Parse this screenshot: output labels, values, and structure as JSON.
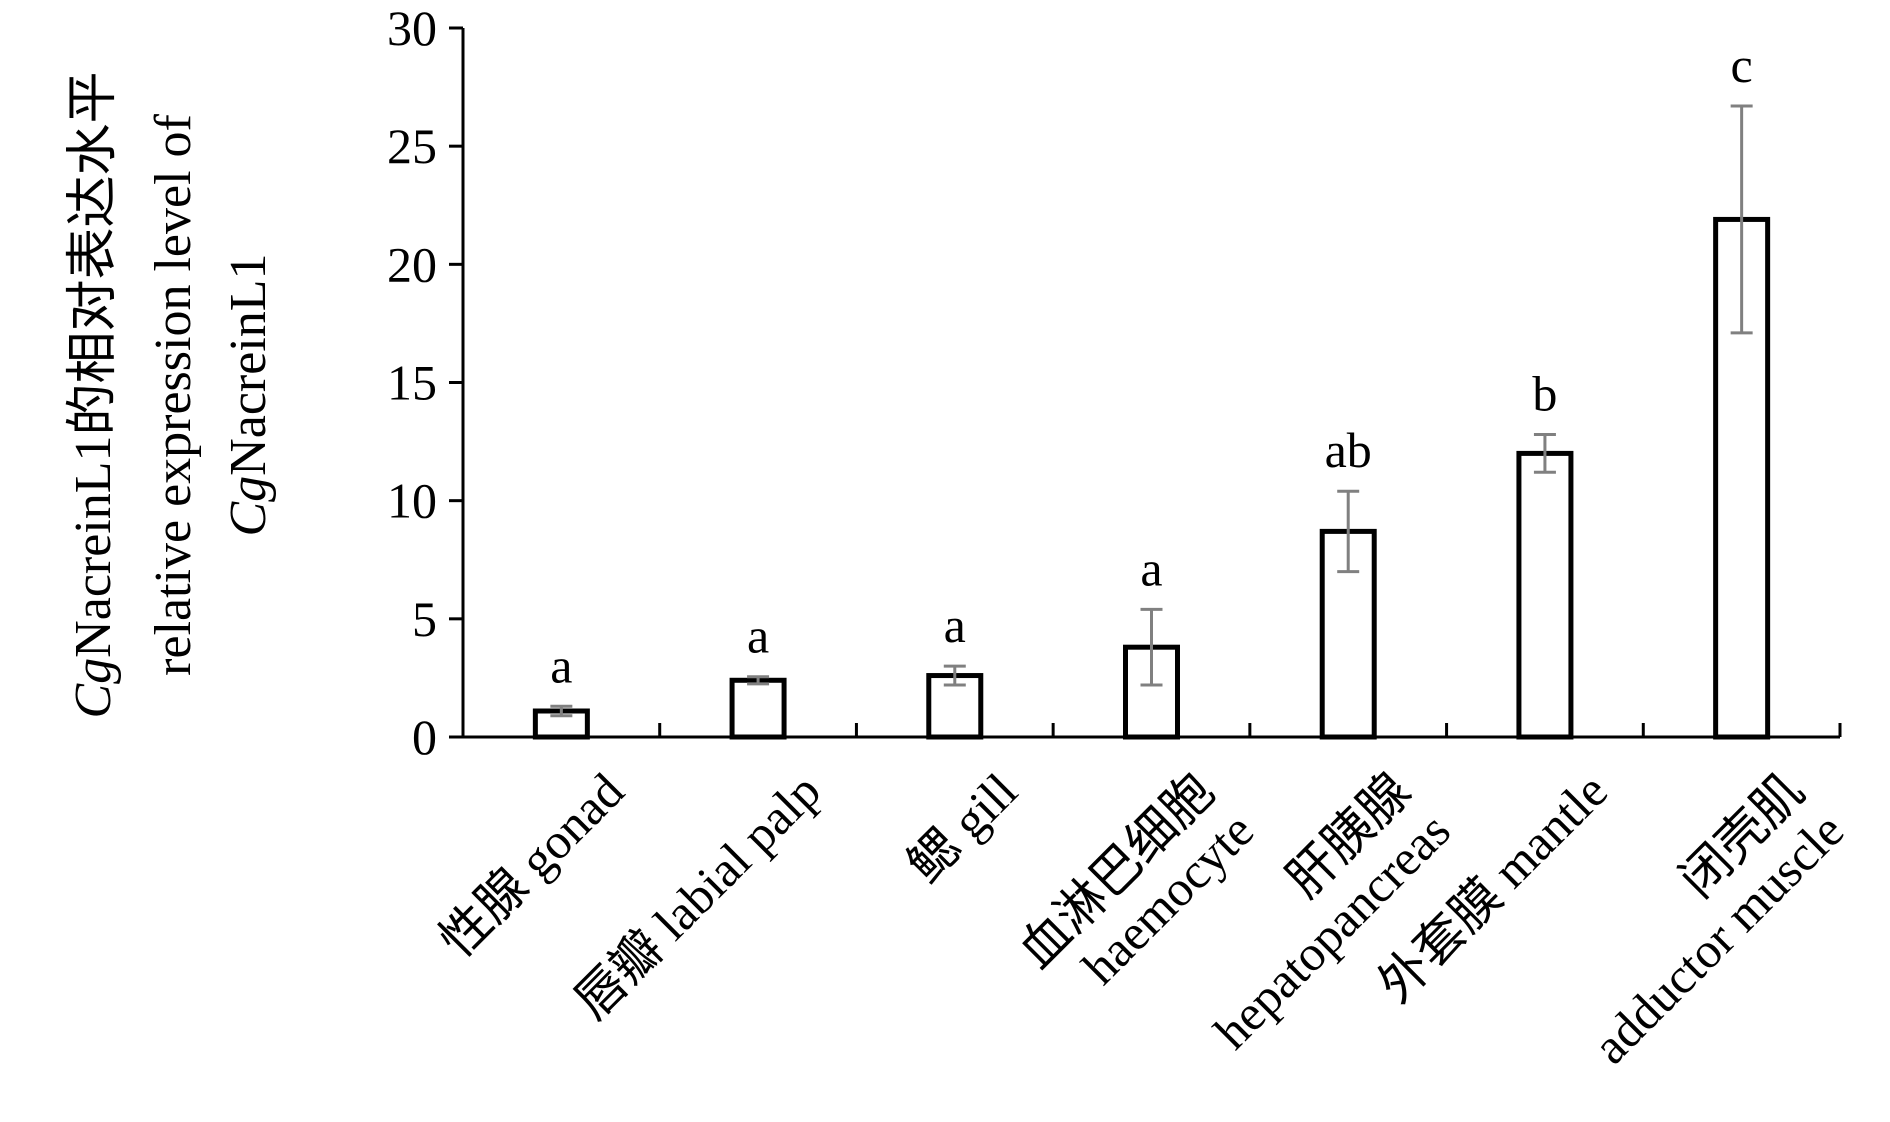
{
  "chart_data": {
    "type": "bar",
    "title": "",
    "ylabel_lines": [
      {
        "italic": "Cg",
        "rest": "NacreinL1的相对表达水平"
      },
      {
        "italic": "",
        "rest": "relative expression level of"
      },
      {
        "italic": "Cg",
        "rest": "NacreinL1"
      }
    ],
    "xlabel": "",
    "ylim": [
      0,
      30
    ],
    "yticks": [
      "0",
      "5",
      "10",
      "15",
      "20",
      "25",
      "30"
    ],
    "categories": [
      [
        "性腺 gonad"
      ],
      [
        "唇瓣 labial palp"
      ],
      [
        "鳃 gill"
      ],
      [
        "血淋巴细胞",
        "haemocyte"
      ],
      [
        "肝胰腺",
        "hepatopancreas"
      ],
      [
        "外套膜 mantle"
      ],
      [
        "闭壳肌",
        "adductor muscle"
      ]
    ],
    "values": [
      1.1,
      2.4,
      2.6,
      3.8,
      8.7,
      12.0,
      21.9
    ],
    "errors": [
      0.2,
      0.15,
      0.4,
      1.6,
      1.7,
      0.8,
      4.8
    ],
    "significance": [
      "a",
      "a",
      "a",
      "a",
      "ab",
      "b",
      "c"
    ],
    "grid": false,
    "legend": "none",
    "colors": {
      "bar_fill": "#ffffff",
      "bar_stroke": "#000000",
      "error_bar": "#808080",
      "axis": "#000000"
    }
  }
}
